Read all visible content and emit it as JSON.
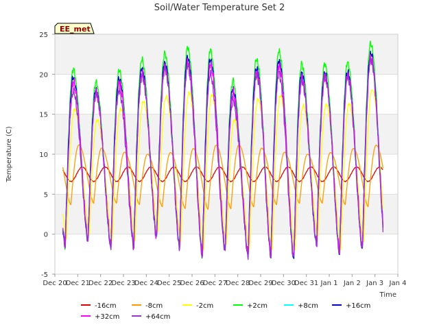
{
  "chart_data": {
    "type": "line",
    "title": "Soil/Water Temperature Set 2",
    "xlabel": "Time",
    "ylabel": "Temperature (C)",
    "badge": "EE_met",
    "ylim": [
      -5,
      25
    ],
    "yticks": [
      -5,
      0,
      5,
      10,
      15,
      20,
      25
    ],
    "xlim": [
      0,
      15
    ],
    "xtick_labels": [
      "Dec 20",
      "Dec 21",
      "Dec 22",
      "Dec 23",
      "Dec 24",
      "Dec 25",
      "Dec 26",
      "Dec 27",
      "Dec 28",
      "Dec 29",
      "Dec 30",
      "Dec 31",
      "Jan 1",
      "Jan 2",
      "Jan 3",
      "Jan 4"
    ],
    "grid": true,
    "legend_position": "bottom",
    "daily_peaks": {
      "x": [
        1.1,
        2.1,
        3.1,
        4.1,
        5.1,
        6.1,
        7.1,
        8.1,
        9.1,
        10.1,
        11.1,
        12.1,
        13.1,
        14.1
      ],
      "plus2cm_max": [
        20.6,
        18.3,
        21.3,
        22.0,
        22.8,
        23.5,
        22.8,
        17.6,
        23.5,
        22.6,
        20.7,
        21.5,
        21.4,
        24.8
      ],
      "plus64cm_max": [
        17.8,
        17.7,
        18.0,
        20.5,
        21.0,
        21.0,
        19.5,
        15.5,
        21.5,
        19.5,
        19.0,
        20.0,
        19.5,
        22.8
      ]
    },
    "daily_minima": {
      "x": [
        0.6,
        1.6,
        2.6,
        3.6,
        4.6,
        5.6,
        6.6,
        7.6,
        8.6,
        9.6,
        10.6,
        11.6,
        12.6,
        13.6
      ],
      "plus2cm_min": [
        -1.5,
        -0.8,
        -1.9,
        -1.5,
        -0.3,
        -2.0,
        -3.0,
        -2.0,
        -3.0,
        -2.7,
        -3.3,
        -1.0,
        -2.8,
        -1.8
      ]
    },
    "series": [
      {
        "name": "-16cm",
        "color": "#dd0000",
        "values": {
          "mean": 7.5,
          "amplitude": 0.9,
          "min": 5.7,
          "max": 9.0
        }
      },
      {
        "name": "-8cm",
        "color": "#ff9900",
        "values": {
          "mean": 7.0,
          "amplitude": 3.5,
          "min": 2.7,
          "max": 11.7
        }
      },
      {
        "name": "-2cm",
        "color": "#ffff00",
        "values": {
          "min": -2.0,
          "max": 18.0
        }
      },
      {
        "name": "+2cm",
        "color": "#00ff00",
        "values": {
          "min": -3.3,
          "max": 24.8
        }
      },
      {
        "name": "+8cm",
        "color": "#00ffff",
        "values": {
          "min": -3.0,
          "max": 22.0
        }
      },
      {
        "name": "+16cm",
        "color": "#0000cc",
        "values": {
          "min": -3.2,
          "max": 23.0
        }
      },
      {
        "name": "+32cm",
        "color": "#ff00ff",
        "values": {
          "min": -3.0,
          "max": 22.5
        }
      },
      {
        "name": "+64cm",
        "color": "#9933cc",
        "values": {
          "min": -3.4,
          "max": 22.8
        }
      }
    ]
  }
}
